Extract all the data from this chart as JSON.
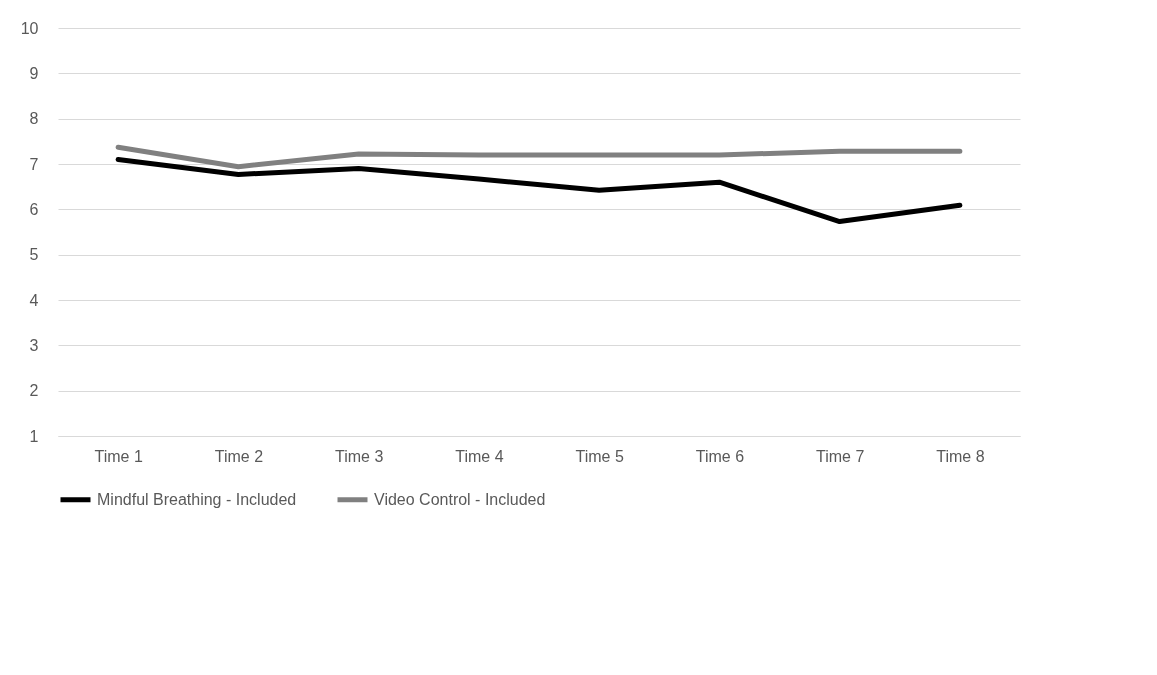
{
  "chart_data": {
    "type": "line",
    "categories": [
      "Time 1",
      "Time 2",
      "Time 3",
      "Time 4",
      "Time 5",
      "Time 6",
      "Time 7",
      "Time 8"
    ],
    "series": [
      {
        "name": "Mindful Breathing - Included",
        "color": "#000000",
        "values": [
          7.1,
          6.77,
          6.9,
          6.67,
          6.42,
          6.6,
          5.73,
          6.09
        ]
      },
      {
        "name": "Video Control - Included",
        "color": "#808080",
        "values": [
          7.37,
          6.94,
          7.22,
          7.2,
          7.2,
          7.2,
          7.28,
          7.28
        ]
      }
    ],
    "ylim": [
      1,
      10
    ],
    "yticks": [
      1,
      2,
      3,
      4,
      5,
      6,
      7,
      8,
      9,
      10
    ],
    "grid": "y",
    "legend": "bottom",
    "marker": "none",
    "line_style": "solid"
  }
}
